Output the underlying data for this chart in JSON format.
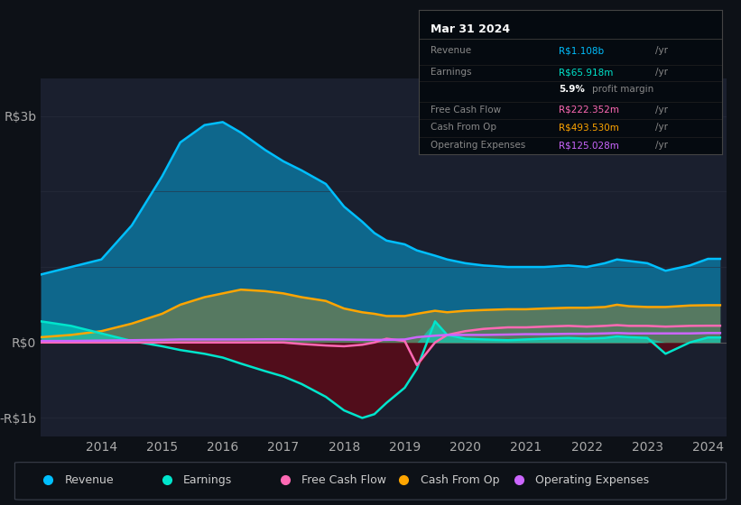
{
  "bg_color": "#0d1117",
  "plot_bg_color": "#1a1f2e",
  "ylabel_R3b": "R$3b",
  "ylabel_R0": "R$0",
  "ylabel_Rm1b": "-R$1b",
  "x_ticks": [
    2014,
    2015,
    2016,
    2017,
    2018,
    2019,
    2020,
    2021,
    2022,
    2023,
    2024
  ],
  "ylim_min": -1250000000.0,
  "ylim_max": 3500000000.0,
  "colors": {
    "revenue": "#00bfff",
    "earnings": "#00e5cc",
    "free_cash_flow": "#ff69b4",
    "cash_from_op": "#ffa500",
    "operating_expenses": "#cc66ff"
  },
  "earnings_neg_fill": "#5c0a18",
  "legend_items": [
    {
      "label": "Revenue",
      "color": "#00bfff"
    },
    {
      "label": "Earnings",
      "color": "#00e5cc"
    },
    {
      "label": "Free Cash Flow",
      "color": "#ff69b4"
    },
    {
      "label": "Cash From Op",
      "color": "#ffa500"
    },
    {
      "label": "Operating Expenses",
      "color": "#cc66ff"
    }
  ],
  "tooltip_title": "Mar 31 2024",
  "tooltip_rows": [
    {
      "label": "Revenue",
      "value": "R$1.108b",
      "unit": "/yr",
      "color": "#00bfff"
    },
    {
      "label": "Earnings",
      "value": "R$65.918m",
      "unit": "/yr",
      "color": "#00e5cc"
    },
    {
      "label": "",
      "value": "5.9%",
      "unit": " profit margin",
      "color": "#ffffff"
    },
    {
      "label": "Free Cash Flow",
      "value": "R$222.352m",
      "unit": "/yr",
      "color": "#ff69b4"
    },
    {
      "label": "Cash From Op",
      "value": "R$493.530m",
      "unit": "/yr",
      "color": "#ffa500"
    },
    {
      "label": "Operating Expenses",
      "value": "R$125.028m",
      "unit": "/yr",
      "color": "#cc66ff"
    }
  ]
}
